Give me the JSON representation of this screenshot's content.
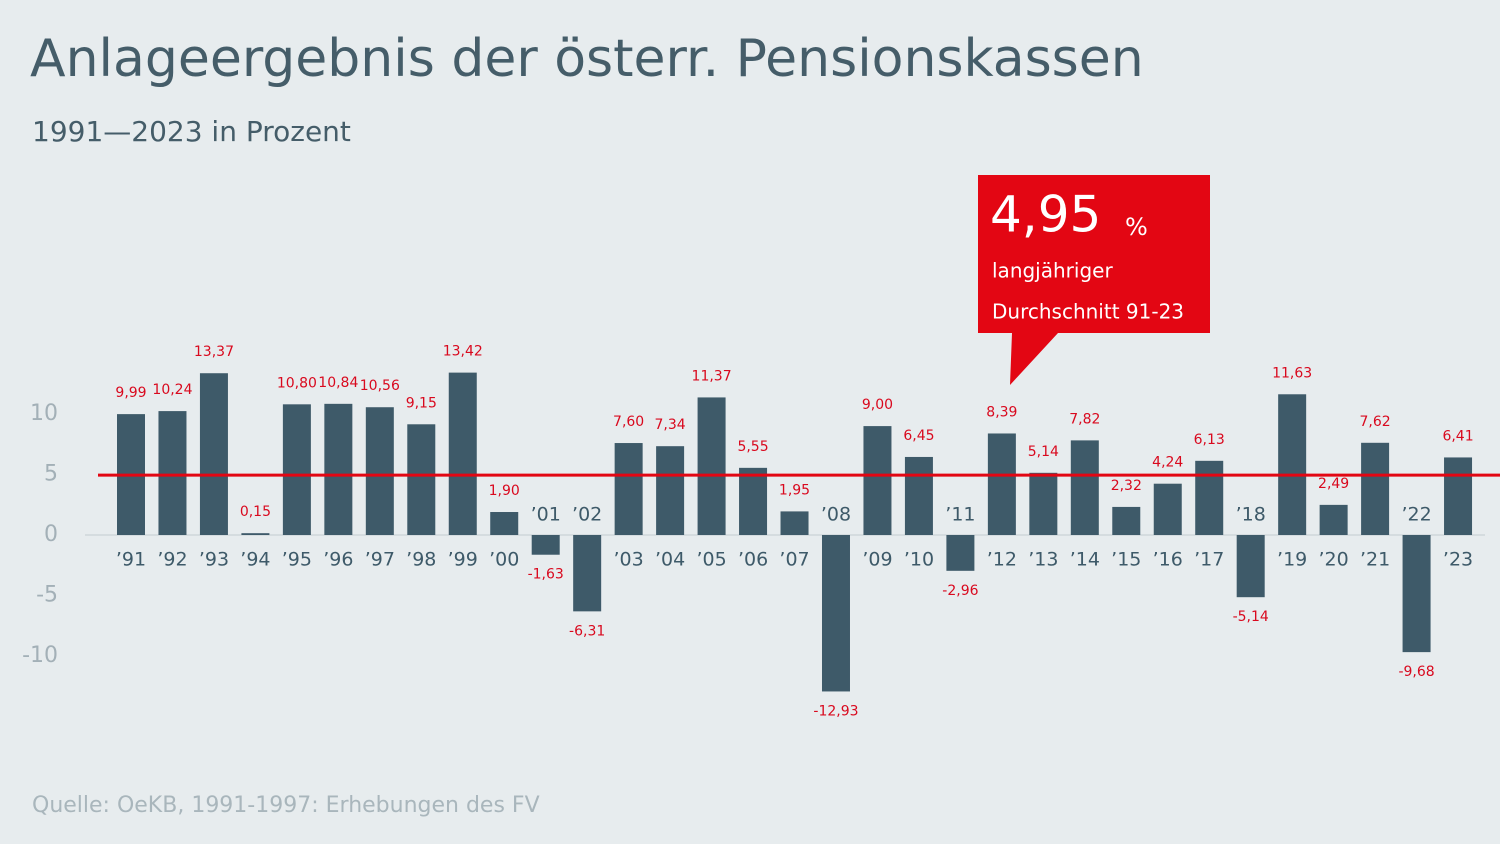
{
  "chart_data": {
    "type": "bar",
    "title": "Anlageergebnis der österr. Pensionskassen",
    "subtitle": "1991—2023 in Prozent",
    "source": "Quelle: OeKB, 1991-1997: Erhebungen des FV",
    "categories": [
      "’91",
      "’92",
      "’93",
      "’94",
      "’95",
      "’96",
      "’97",
      "’98",
      "’99",
      "’00",
      "’01",
      "’02",
      "’03",
      "’04",
      "’05",
      "’06",
      "’07",
      "’08",
      "’09",
      "’10",
      "’11",
      "’12",
      "’13",
      "’14",
      "’15",
      "’16",
      "’17",
      "’18",
      "’19",
      "’20",
      "’21",
      "’22",
      "’23"
    ],
    "values": [
      9.99,
      10.24,
      13.37,
      0.15,
      10.8,
      10.84,
      10.56,
      9.15,
      13.42,
      1.9,
      -1.63,
      -6.31,
      7.6,
      7.34,
      11.37,
      5.55,
      1.95,
      -12.93,
      9.0,
      6.45,
      -2.96,
      8.39,
      5.14,
      7.82,
      2.32,
      4.24,
      6.13,
      -5.14,
      11.63,
      2.49,
      7.62,
      -9.68,
      6.41
    ],
    "value_labels": [
      "9,99",
      "10,24",
      "13,37",
      "0,15",
      "10,80",
      "10,84",
      "10,56",
      "9,15",
      "13,42",
      "1,90",
      "-1,63",
      "-6,31",
      "7,60",
      "7,34",
      "11,37",
      "5,55",
      "1,95",
      "-12,93",
      "9,00",
      "6,45",
      "-2,96",
      "8,39",
      "5,14",
      "7,82",
      "2,32",
      "4,24",
      "6,13",
      "-5,14",
      "11,63",
      "2,49",
      "7,62",
      "-9,68",
      "6,41"
    ],
    "color": "#3e5a69",
    "label_color": "#d9091e",
    "ylim": [
      -14,
      15
    ],
    "yticks": [
      -10,
      -5,
      0,
      5,
      10
    ],
    "average": {
      "value": 4.95,
      "label": "4,95",
      "unit": "%",
      "caption": [
        "langjähriger",
        "Durchschnitt 91-23"
      ],
      "color": "#e30613"
    }
  }
}
